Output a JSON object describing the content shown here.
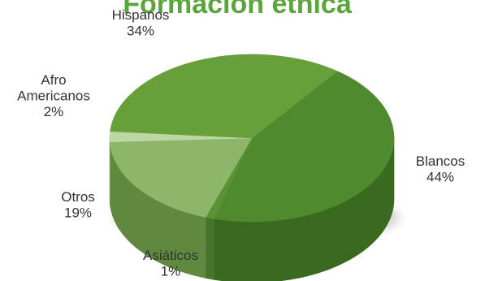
{
  "chart_data": {
    "type": "pie",
    "title": "Formación étnica",
    "style": "3d",
    "slices": [
      {
        "label": "Blancos",
        "value": 44,
        "display_lines": [
          "Blancos",
          "44%"
        ],
        "color": "#4f8a2e",
        "side_color": "#3a6920"
      },
      {
        "label": "Asiáticos",
        "value": 1,
        "display_lines": [
          "Asiáticos",
          "1%"
        ],
        "color": "#5c9236",
        "side_color": "#46742a"
      },
      {
        "label": "Otros",
        "value": 19,
        "display_lines": [
          "Otros",
          "19%"
        ],
        "color": "#8db66a",
        "side_color": "#60883f"
      },
      {
        "label": "Afro Americanos",
        "value": 2,
        "display_lines": [
          "Afro",
          "Americanos",
          "2%"
        ],
        "color": "#bcd7a4",
        "side_color": "#96b57c"
      },
      {
        "label": "Hispanos",
        "value": 34,
        "display_lines": [
          "Hispanos",
          "34%"
        ],
        "color": "#67a03a",
        "side_color": "#4f8a2e"
      }
    ],
    "title_color": "#5aa53c",
    "label_color": "#333333"
  }
}
